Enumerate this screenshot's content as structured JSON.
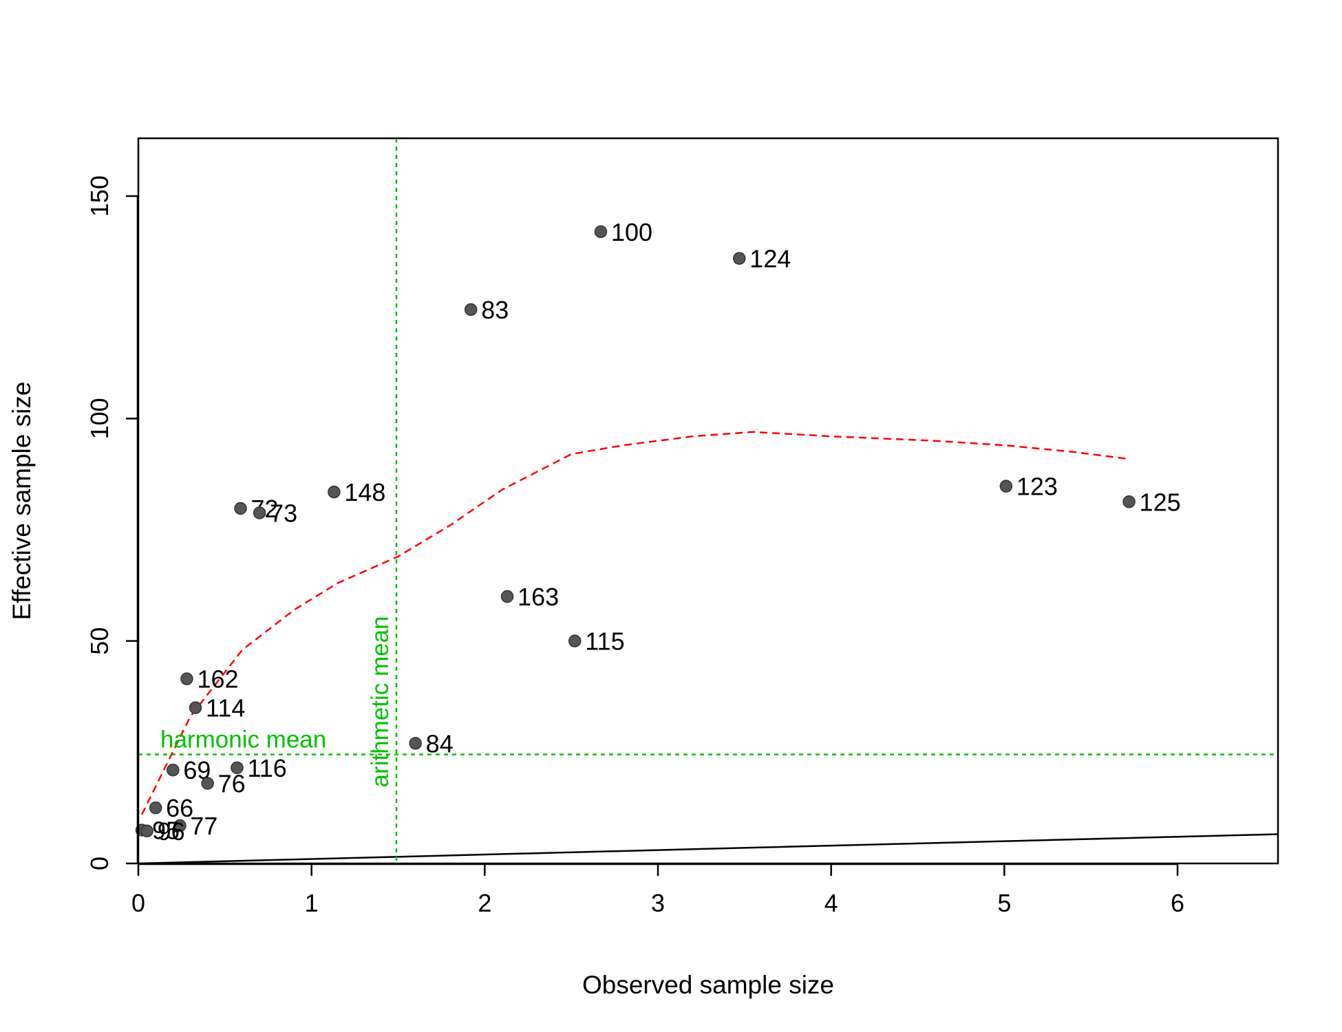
{
  "chart_data": {
    "type": "scatter",
    "title": "",
    "xlabel": "Observed sample size",
    "ylabel": "Effective sample size",
    "xlim": [
      0,
      6.58
    ],
    "ylim": [
      0,
      163
    ],
    "xticks": [
      0,
      1,
      2,
      3,
      4,
      5,
      6
    ],
    "yticks": [
      0,
      50,
      100,
      150
    ],
    "xtick_labels": [
      "0",
      "1",
      "2",
      "3",
      "4",
      "5",
      "6"
    ],
    "ytick_labels": [
      "0",
      "50",
      "100",
      "150"
    ],
    "grid": false,
    "point_color": "#555555",
    "points": [
      {
        "label": "100",
        "x": 2.67,
        "y": 142
      },
      {
        "label": "124",
        "x": 3.47,
        "y": 136
      },
      {
        "label": "83",
        "x": 1.92,
        "y": 124.5
      },
      {
        "label": "148",
        "x": 1.13,
        "y": 83.5
      },
      {
        "label": "72",
        "x": 0.59,
        "y": 79.8
      },
      {
        "label": "73",
        "x": 0.7,
        "y": 78.8
      },
      {
        "label": "123",
        "x": 5.01,
        "y": 84.8
      },
      {
        "label": "125",
        "x": 5.72,
        "y": 81.3
      },
      {
        "label": "163",
        "x": 2.13,
        "y": 60
      },
      {
        "label": "115",
        "x": 2.52,
        "y": 50
      },
      {
        "label": "162",
        "x": 0.28,
        "y": 41.5
      },
      {
        "label": "114",
        "x": 0.33,
        "y": 35
      },
      {
        "label": "84",
        "x": 1.6,
        "y": 27
      },
      {
        "label": "69",
        "x": 0.2,
        "y": 21
      },
      {
        "label": "116",
        "x": 0.57,
        "y": 21.5
      },
      {
        "label": "76",
        "x": 0.4,
        "y": 18
      },
      {
        "label": "66",
        "x": 0.1,
        "y": 12.5
      },
      {
        "label": "77",
        "x": 0.24,
        "y": 8.5
      },
      {
        "label": "95",
        "x": 0.02,
        "y": 7.5
      },
      {
        "label": "96",
        "x": 0.05,
        "y": 7.3
      }
    ],
    "smooth_line": {
      "color": "#ff0000",
      "style": "dashed",
      "x": [
        0.02,
        0.3,
        0.6,
        0.9,
        1.15,
        1.5,
        1.8,
        2.1,
        2.5,
        2.8,
        3.2,
        3.55,
        4.0,
        4.6,
        5.0,
        5.4,
        5.7
      ],
      "y": [
        11,
        33,
        48,
        57,
        63,
        69,
        76,
        84,
        92,
        94,
        96,
        97,
        96,
        95,
        94,
        92.5,
        91
      ]
    },
    "identity_line": {
      "color": "#000000",
      "x": [
        0,
        6.58
      ],
      "y": [
        0,
        6.58
      ]
    },
    "reference_lines": {
      "color": "#00c000",
      "arithmetic_mean": {
        "x": 1.49,
        "label": "arithmetic mean"
      },
      "harmonic_mean": {
        "y": 24.5,
        "label": "harmonic mean"
      }
    }
  }
}
